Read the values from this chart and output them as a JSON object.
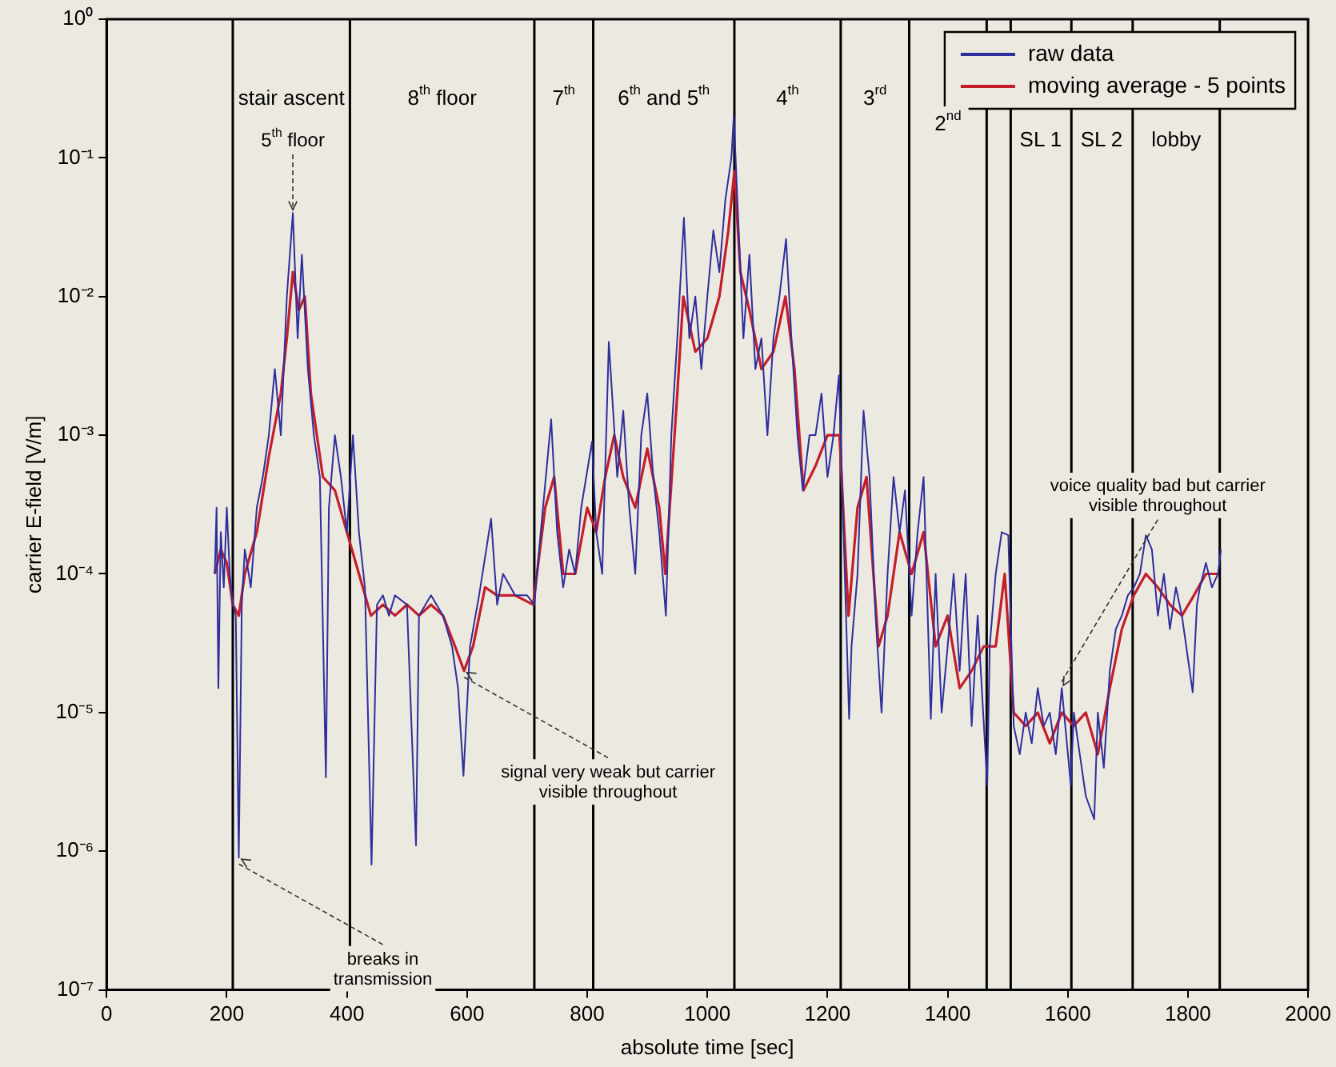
{
  "chart_data": {
    "type": "line",
    "xlabel": "absolute time [sec]",
    "ylabel": "carrier E-field [V/m]",
    "log": "y",
    "xlim": [
      0,
      2000
    ],
    "xticks": [
      0,
      200,
      400,
      600,
      800,
      1000,
      1200,
      1400,
      1600,
      1800,
      2000
    ],
    "ylim": [
      1e-07,
      1
    ],
    "yticks": [
      {
        "value": 1e-07,
        "label": "10⁻⁷"
      },
      {
        "value": 1e-06,
        "label": "10⁻⁶"
      },
      {
        "value": 1e-05,
        "label": "10⁻⁵"
      },
      {
        "value": 0.0001,
        "label": "10⁻⁴"
      },
      {
        "value": 0.001,
        "label": "10⁻³"
      },
      {
        "value": 0.01,
        "label": "10⁻²"
      },
      {
        "value": 0.1,
        "label": "10⁻¹"
      },
      {
        "value": 1,
        "label": "10⁰"
      }
    ],
    "legend": "top right",
    "marker": "none",
    "line_style": "solid",
    "series": [
      {
        "name": "raw data",
        "color": "#2e2e9e",
        "x": [
          180,
          183,
          186,
          190,
          195,
          200,
          205,
          210,
          215,
          220,
          225,
          230,
          240,
          250,
          260,
          270,
          280,
          290,
          300,
          310,
          318,
          325,
          335,
          345,
          355,
          365,
          370,
          380,
          390,
          400,
          410,
          420,
          430,
          441,
          450,
          460,
          470,
          480,
          500,
          515,
          520,
          540,
          560,
          575,
          585,
          594,
          605,
          620,
          640,
          650,
          660,
          680,
          700,
          712,
          720,
          740,
          750,
          760,
          770,
          780,
          790,
          808,
          815,
          825,
          836,
          850,
          860,
          870,
          880,
          890,
          900,
          910,
          920,
          931,
          940,
          950,
          961,
          970,
          980,
          990,
          1000,
          1010,
          1020,
          1030,
          1040,
          1044,
          1050,
          1060,
          1070,
          1080,
          1090,
          1100,
          1110,
          1120,
          1131,
          1140,
          1150,
          1159,
          1170,
          1180,
          1190,
          1200,
          1210,
          1219,
          1236,
          1240,
          1250,
          1260,
          1270,
          1280,
          1290,
          1300,
          1310,
          1320,
          1329,
          1340,
          1350,
          1360,
          1372,
          1380,
          1390,
          1400,
          1410,
          1420,
          1430,
          1440,
          1450,
          1466,
          1470,
          1480,
          1490,
          1501,
          1510,
          1520,
          1530,
          1540,
          1550,
          1560,
          1570,
          1580,
          1590,
          1605,
          1610,
          1620,
          1630,
          1644,
          1650,
          1660,
          1670,
          1680,
          1690,
          1700,
          1710,
          1720,
          1730,
          1740,
          1750,
          1760,
          1770,
          1780,
          1790,
          1808,
          1815,
          1820,
          1830,
          1840,
          1850,
          1855
        ],
        "values": [
          0.0001,
          0.0003,
          1.5e-05,
          0.0002,
          8e-05,
          0.0003,
          0.0001,
          6e-05,
          5e-05,
          9e-07,
          6e-05,
          0.00015,
          8e-05,
          0.0003,
          0.0005,
          0.001,
          0.003,
          0.001,
          0.01,
          0.04,
          0.005,
          0.02,
          0.003,
          0.001,
          0.0005,
          3.4e-06,
          0.0003,
          0.001,
          0.0005,
          0.0002,
          0.001,
          0.0002,
          8e-05,
          8e-07,
          6e-05,
          7e-05,
          5e-05,
          7e-05,
          6e-05,
          1.1e-06,
          5e-05,
          7e-05,
          5e-05,
          3e-05,
          1.5e-05,
          3.5e-06,
          3e-05,
          7e-05,
          0.00025,
          6e-05,
          0.0001,
          7e-05,
          7e-05,
          6e-05,
          0.00015,
          0.0013,
          0.0002,
          8e-05,
          0.00015,
          0.0001,
          0.0003,
          0.0009,
          0.0002,
          0.0001,
          0.0047,
          0.0005,
          0.0015,
          0.0003,
          0.0001,
          0.001,
          0.002,
          0.0005,
          0.0002,
          5e-05,
          0.001,
          0.005,
          0.037,
          0.005,
          0.01,
          0.003,
          0.01,
          0.03,
          0.015,
          0.05,
          0.1,
          0.2,
          0.05,
          0.005,
          0.02,
          0.003,
          0.005,
          0.001,
          0.005,
          0.01,
          0.026,
          0.005,
          0.001,
          0.0004,
          0.001,
          0.001,
          0.002,
          0.0005,
          0.001,
          0.0027,
          9e-06,
          3e-05,
          0.0001,
          0.0015,
          0.0005,
          5e-05,
          1e-05,
          0.0001,
          0.0005,
          0.0002,
          0.0004,
          5e-05,
          0.0002,
          0.0005,
          9e-06,
          0.0001,
          1e-05,
          3e-05,
          0.0001,
          2e-05,
          0.0001,
          8e-06,
          5e-05,
          3e-06,
          3e-05,
          0.0001,
          0.0002,
          0.00019,
          8e-06,
          5e-06,
          1e-05,
          6e-06,
          1.5e-05,
          8e-06,
          1e-05,
          5e-06,
          1.5e-05,
          3e-06,
          1e-05,
          5e-06,
          2.5e-06,
          1.7e-06,
          1e-05,
          4e-06,
          2e-05,
          4e-05,
          5e-05,
          7e-05,
          8e-05,
          0.0001,
          0.00019,
          0.00015,
          5e-05,
          0.0001,
          4e-05,
          8e-05,
          5e-05,
          1.4e-05,
          6e-05,
          8e-05,
          0.00012,
          8e-05,
          0.0001,
          0.00015
        ]
      },
      {
        "name": "moving average - 5 points",
        "color": "#c41e2a",
        "x": [
          180,
          190,
          200,
          210,
          220,
          230,
          250,
          270,
          290,
          300,
          310,
          320,
          330,
          340,
          350,
          360,
          380,
          400,
          420,
          440,
          460,
          480,
          500,
          520,
          540,
          560,
          580,
          595,
          610,
          630,
          650,
          680,
          710,
          730,
          745,
          760,
          780,
          800,
          815,
          830,
          845,
          860,
          880,
          900,
          920,
          930,
          950,
          960,
          980,
          1000,
          1020,
          1035,
          1045,
          1055,
          1070,
          1090,
          1110,
          1130,
          1145,
          1160,
          1180,
          1200,
          1220,
          1235,
          1250,
          1265,
          1285,
          1300,
          1320,
          1340,
          1360,
          1380,
          1400,
          1420,
          1440,
          1460,
          1480,
          1495,
          1510,
          1530,
          1550,
          1570,
          1590,
          1610,
          1630,
          1650,
          1670,
          1690,
          1710,
          1730,
          1750,
          1770,
          1790,
          1810,
          1830,
          1850
        ],
        "values": [
          0.0001,
          0.00015,
          0.00012,
          6e-05,
          5e-05,
          0.0001,
          0.0002,
          0.0007,
          0.002,
          0.005,
          0.015,
          0.008,
          0.01,
          0.002,
          0.001,
          0.0005,
          0.0004,
          0.0002,
          0.0001,
          5e-05,
          6e-05,
          5e-05,
          6e-05,
          5e-05,
          6e-05,
          5e-05,
          3e-05,
          2e-05,
          3e-05,
          8e-05,
          7e-05,
          7e-05,
          6e-05,
          0.0003,
          0.0005,
          0.0001,
          0.0001,
          0.0003,
          0.0002,
          0.0005,
          0.001,
          0.0005,
          0.0003,
          0.0008,
          0.0003,
          0.0001,
          0.002,
          0.01,
          0.004,
          0.005,
          0.01,
          0.03,
          0.08,
          0.015,
          0.008,
          0.003,
          0.004,
          0.01,
          0.003,
          0.0004,
          0.0006,
          0.001,
          0.001,
          5e-05,
          0.0003,
          0.0005,
          3e-05,
          5e-05,
          0.0002,
          0.0001,
          0.0002,
          3e-05,
          5e-05,
          1.5e-05,
          2e-05,
          3e-05,
          3e-05,
          0.0001,
          1e-05,
          8e-06,
          1e-05,
          6e-06,
          1e-05,
          8e-06,
          1e-05,
          5e-06,
          1.5e-05,
          4e-05,
          7e-05,
          0.0001,
          8e-05,
          6e-05,
          5e-05,
          7e-05,
          0.0001,
          0.0001
        ]
      }
    ],
    "ref_lines": [
      {
        "axis": "x",
        "value": 210,
        "color": "#000000",
        "label": "stair ascent"
      },
      {
        "axis": "x",
        "value": 405,
        "color": "#000000",
        "label": "8$^{th}$ floor"
      },
      {
        "axis": "x",
        "value": 712,
        "color": "#000000",
        "label": "7$^{th}$"
      },
      {
        "axis": "x",
        "value": 810,
        "color": "#000000",
        "label": "6$^{th}$ and 5$^{th}$"
      },
      {
        "axis": "x",
        "value": 1045,
        "color": "#000000",
        "label": "4$^{th}$"
      },
      {
        "axis": "x",
        "value": 1222,
        "color": "#000000",
        "label": "3$^{rd}$"
      },
      {
        "axis": "x",
        "value": 1336,
        "color": "#000000",
        "label": "2$^{nd}$"
      },
      {
        "axis": "x",
        "value": 1465,
        "color": "#000000"
      },
      {
        "axis": "x",
        "value": 1505,
        "color": "#000000",
        "label": "SL 1"
      },
      {
        "axis": "x",
        "value": 1606,
        "color": "#000000",
        "label": "SL 2"
      },
      {
        "axis": "x",
        "value": 1708,
        "color": "#000000",
        "label": "lobby"
      },
      {
        "axis": "x",
        "value": 1853,
        "color": "#000000"
      }
    ],
    "annotations": [
      {
        "text": "5$^{th}$ floor",
        "x": 310,
        "y": 0.04
      },
      {
        "text": "breaks in\ntransmission",
        "x": 220,
        "y": 9e-07
      },
      {
        "text": "signal very weak but carrier\nvisible throughout",
        "x": 595,
        "y": 2e-05
      },
      {
        "text": "voice quality bad but carrier\nvisible throughout",
        "x": 1590,
        "y": 1.5e-05
      }
    ]
  }
}
